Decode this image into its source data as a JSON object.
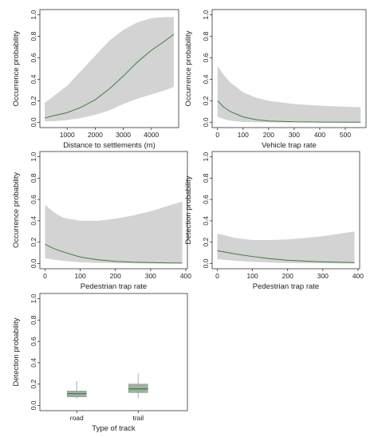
{
  "chart_data": [
    {
      "type": "line",
      "xlabel": "Distance to settlements (m)",
      "ylabel": "Occurrence probability",
      "xlim": [
        200,
        4800
      ],
      "ylim": [
        0,
        1
      ],
      "xticks": [
        1000,
        2000,
        3000,
        4000
      ],
      "yticks": [
        0.0,
        0.2,
        0.4,
        0.6,
        0.8,
        1.0
      ],
      "colors": {
        "band": "#d3d3d3",
        "line": "#3b7d3b"
      },
      "x": [
        200,
        500,
        1000,
        1500,
        2000,
        2500,
        3000,
        3500,
        4000,
        4500,
        4800
      ],
      "y": [
        0.04,
        0.06,
        0.09,
        0.14,
        0.21,
        0.31,
        0.43,
        0.56,
        0.67,
        0.76,
        0.82
      ],
      "lower": [
        0.01,
        0.01,
        0.02,
        0.04,
        0.07,
        0.11,
        0.17,
        0.22,
        0.26,
        0.3,
        0.33
      ],
      "upper": [
        0.18,
        0.24,
        0.34,
        0.48,
        0.62,
        0.76,
        0.86,
        0.93,
        0.97,
        0.98,
        0.98
      ]
    },
    {
      "type": "line",
      "xlabel": "Vehicle trap rate",
      "ylabel": "Occurrence probability",
      "xlim": [
        0,
        560
      ],
      "ylim": [
        0,
        1
      ],
      "xticks": [
        0,
        100,
        200,
        300,
        400,
        500
      ],
      "yticks": [
        0.0,
        0.2,
        0.4,
        0.6,
        0.8,
        1.0
      ],
      "colors": {
        "band": "#d3d3d3",
        "line": "#3b7d3b"
      },
      "x": [
        0,
        25,
        50,
        100,
        150,
        200,
        300,
        400,
        500,
        560
      ],
      "y": [
        0.2,
        0.14,
        0.1,
        0.05,
        0.025,
        0.012,
        0.004,
        0.002,
        0.001,
        0.001
      ],
      "lower": [
        0.05,
        0.03,
        0.015,
        0.003,
        0.001,
        0.0,
        0.0,
        0.0,
        0.0,
        0.0
      ],
      "upper": [
        0.52,
        0.44,
        0.37,
        0.28,
        0.23,
        0.2,
        0.17,
        0.155,
        0.145,
        0.14
      ]
    },
    {
      "type": "line",
      "xlabel": "Pedestrian trap rate",
      "ylabel": "Occurrence probability",
      "xlim": [
        0,
        390
      ],
      "ylim": [
        0,
        1
      ],
      "xticks": [
        0,
        100,
        200,
        300,
        400
      ],
      "yticks": [
        0.0,
        0.2,
        0.4,
        0.6,
        0.8,
        1.0
      ],
      "colors": {
        "band": "#d3d3d3",
        "line": "#3b7d3b"
      },
      "x": [
        0,
        25,
        50,
        100,
        150,
        200,
        250,
        300,
        350,
        390
      ],
      "y": [
        0.18,
        0.14,
        0.11,
        0.06,
        0.035,
        0.02,
        0.012,
        0.008,
        0.005,
        0.004
      ],
      "lower": [
        0.05,
        0.035,
        0.025,
        0.01,
        0.005,
        0.002,
        0.001,
        0.0,
        0.0,
        0.0
      ],
      "upper": [
        0.55,
        0.48,
        0.43,
        0.4,
        0.4,
        0.42,
        0.45,
        0.49,
        0.54,
        0.58
      ]
    },
    {
      "type": "line",
      "xlabel": "Pedestrian trap rate",
      "ylabel": "Detection probability",
      "xlim": [
        0,
        390
      ],
      "ylim": [
        0,
        1
      ],
      "xticks": [
        0,
        100,
        200,
        300,
        400
      ],
      "yticks": [
        0.0,
        0.2,
        0.4,
        0.6,
        0.8,
        1.0
      ],
      "colors": {
        "band": "#d3d3d3",
        "line": "#3b7d3b"
      },
      "x": [
        0,
        50,
        100,
        150,
        200,
        250,
        300,
        350,
        390
      ],
      "y": [
        0.12,
        0.09,
        0.065,
        0.045,
        0.03,
        0.022,
        0.015,
        0.011,
        0.008
      ],
      "lower": [
        0.04,
        0.025,
        0.015,
        0.008,
        0.004,
        0.002,
        0.001,
        0.0,
        0.0
      ],
      "upper": [
        0.28,
        0.24,
        0.22,
        0.22,
        0.225,
        0.24,
        0.255,
        0.28,
        0.3
      ]
    },
    {
      "type": "box",
      "xlabel": "Type of track",
      "ylabel": "Detection probability",
      "ylim": [
        0,
        1
      ],
      "yticks": [
        0.0,
        0.2,
        0.4,
        0.6,
        0.8,
        1.0
      ],
      "categories": [
        "road",
        "trail"
      ],
      "colors": {
        "box": "#9fb0a3",
        "median": "#3b7d3b",
        "whisker": "#bbbbbb"
      },
      "boxes": [
        {
          "category": "road",
          "whisker_low": 0.06,
          "q1": 0.08,
          "median": 0.11,
          "q3": 0.135,
          "whisker_high": 0.23
        },
        {
          "category": "trail",
          "whisker_low": 0.07,
          "q1": 0.12,
          "median": 0.155,
          "q3": 0.2,
          "whisker_high": 0.3
        }
      ]
    }
  ]
}
